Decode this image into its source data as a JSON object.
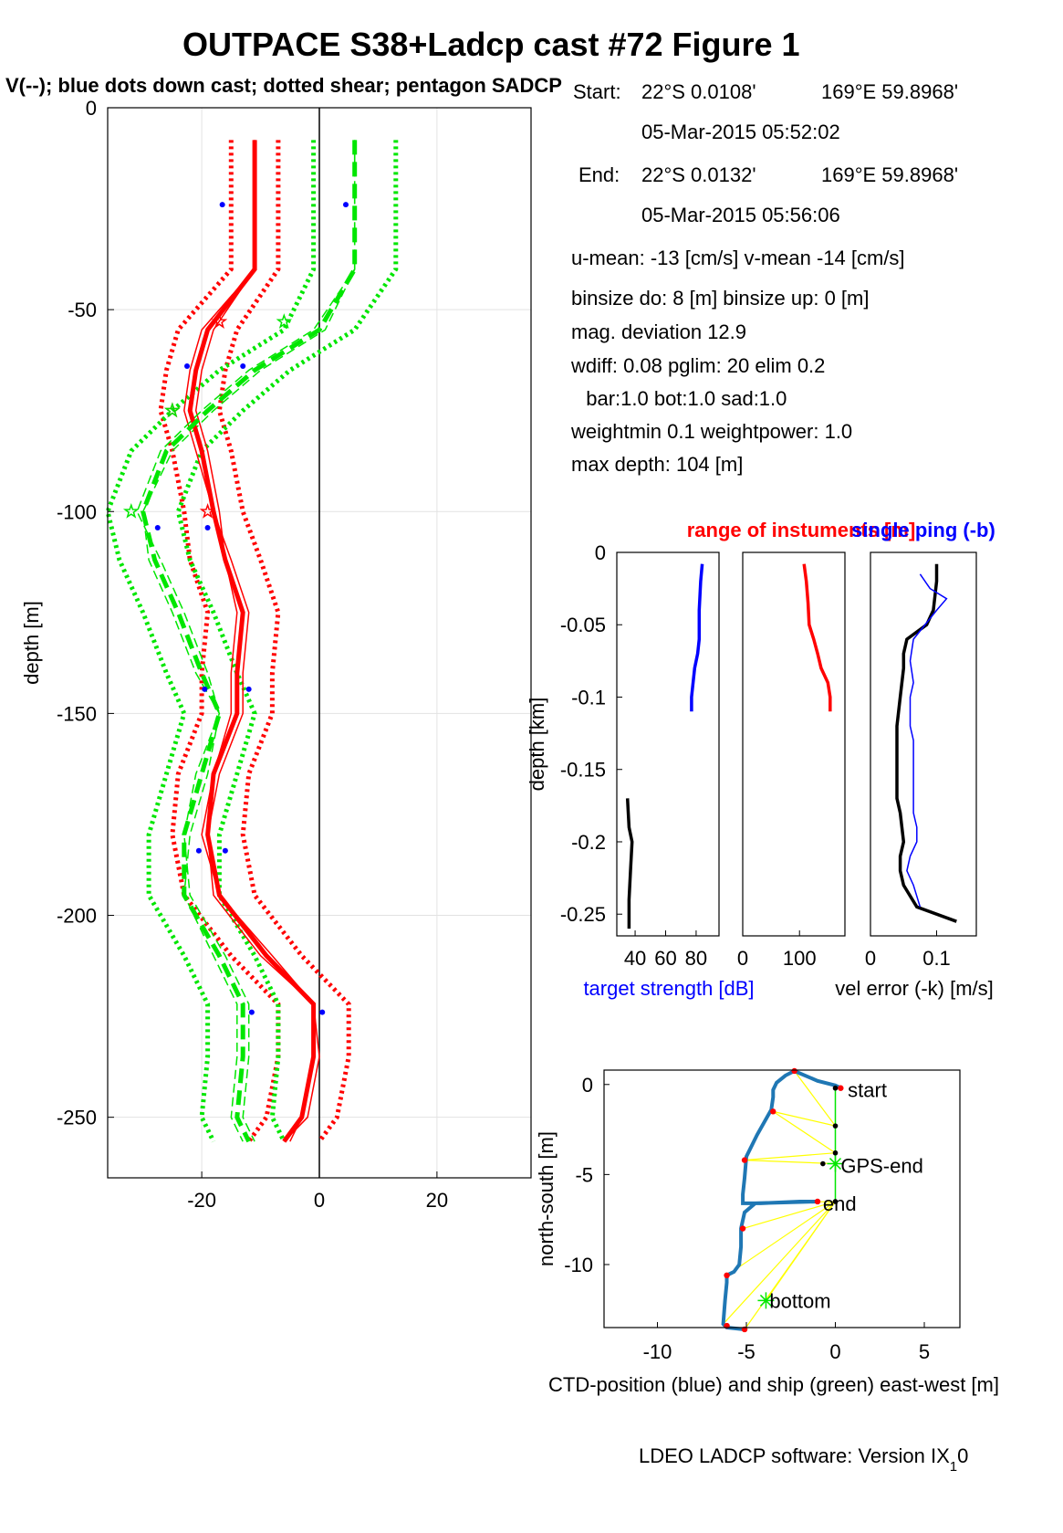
{
  "figure": {
    "title": "OUTPACE S38+Ladcp cast #72  Figure 1",
    "subtitle": "V(--); blue dots down cast; dotted shear; pentagon SADCP",
    "footer": "LDEO LADCP software: Version IX",
    "footer_sub": "1",
    "footer_tail": "0"
  },
  "info": {
    "start_label": "Start:",
    "start_lat": "22°S  0.0108'",
    "start_lon": "169°E 59.8968'",
    "start_time": "05-Mar-2015 05:52:02",
    "end_label": "End:",
    "end_lat": "22°S  0.0132'",
    "end_lon": "169°E 59.8968'",
    "end_time": "05-Mar-2015 05:56:06",
    "mean_line": "u-mean: -13 [cm/s]    v-mean -14 [cm/s]",
    "binsize_line": "binsize do: 8 [m]  binsize up:  0 [m]",
    "magdev_line": "mag. deviation 12.9",
    "wdiff_line": "wdiff: 0.08  pglim: 20  elim 0.2",
    "bar_line": "  bar:1.0 bot:1.0 sad:1.0",
    "weight_line": "weightmin 0.1  weightpower: 1.0",
    "maxdepth_line": "max depth: 104 [m]"
  },
  "chart_data": [
    {
      "type": "line",
      "id": "velocity_profile",
      "ylabel": "depth [m]",
      "xlim": [
        -36,
        36
      ],
      "ylim": [
        -265,
        0
      ],
      "xticks": [
        -20,
        0,
        20
      ],
      "yticks": [
        0,
        -50,
        -100,
        -150,
        -200,
        -250
      ],
      "grid": true,
      "colors": {
        "u": "#ff0000",
        "v": "#00e600",
        "dots": "#0000ff"
      },
      "depth": [
        -8,
        -40,
        -55,
        -65,
        -75,
        -85,
        -100,
        -112,
        -125,
        -140,
        -150,
        -165,
        -180,
        -195,
        -210,
        -222,
        -235,
        -250,
        -256
      ],
      "u_mean": [
        -11,
        -11,
        -19,
        -21,
        -22,
        -20,
        -18,
        -16,
        -13,
        -14,
        -14,
        -18,
        -19,
        -17,
        -9,
        -1,
        -1,
        -3,
        -6
      ],
      "v_mean": [
        6,
        6,
        0,
        -11,
        -19,
        -26,
        -30,
        -28,
        -24,
        -20,
        -17,
        -20,
        -23,
        -23,
        -17,
        -13,
        -13,
        -14,
        -12
      ],
      "u_down": [
        -11,
        -11,
        -20,
        -22,
        -23,
        -21,
        -18,
        -15,
        -12,
        -13,
        -13,
        -17,
        -19,
        -18,
        -10,
        -1,
        -1,
        -3,
        -5
      ],
      "u_up": [
        -11,
        -11,
        -18,
        -20,
        -21,
        -19,
        -17,
        -16,
        -14,
        -15,
        -15,
        -18,
        -20,
        -17,
        -8,
        -1,
        0,
        -2,
        -6
      ],
      "v_down": [
        6,
        6,
        1,
        -10,
        -18,
        -25,
        -30,
        -29,
        -25,
        -21,
        -17,
        -21,
        -23,
        -22,
        -16,
        -12,
        -12,
        -13,
        -11
      ],
      "v_up": [
        6,
        6,
        -1,
        -12,
        -20,
        -27,
        -31,
        -27,
        -23,
        -19,
        -17,
        -19,
        -22,
        -23,
        -18,
        -14,
        -14,
        -15,
        -13
      ],
      "u_err_half": [
        4,
        4,
        5,
        5,
        5,
        5,
        5,
        6,
        6,
        6,
        6,
        6,
        6,
        6,
        6,
        6,
        6,
        6,
        6
      ],
      "v_err_half": [
        7,
        7,
        6,
        6,
        6,
        6,
        6,
        6,
        6,
        6,
        6,
        6,
        6,
        6,
        6,
        6,
        6,
        6,
        6
      ],
      "down_dots": [
        {
          "u": -16.5,
          "v": 4.5,
          "depth": -24
        },
        {
          "u": -22.5,
          "v": -13,
          "depth": -64
        },
        {
          "u": -19,
          "v": -27.5,
          "depth": -104
        },
        {
          "u": -12,
          "v": -19.5,
          "depth": -144
        },
        {
          "u": -16,
          "v": -20.5,
          "depth": -184
        },
        {
          "u": 0.5,
          "v": -11.5,
          "depth": -224
        }
      ],
      "sadcp_markers": [
        {
          "u": -17,
          "v": -6,
          "depth": -53
        },
        {
          "u": -25,
          "v": -25,
          "depth": -75
        },
        {
          "u": -19,
          "v": -32,
          "depth": -100
        }
      ]
    },
    {
      "type": "line",
      "id": "target_strength",
      "xlabel": "target strength [dB]",
      "ylabel": "depth [km]",
      "title_left": "range of instuments [m]",
      "title_right": "single ping (-b)",
      "xlim": [
        28,
        95
      ],
      "ylim": [
        -0.265,
        0
      ],
      "xticks": [
        40,
        60,
        80
      ],
      "yticks": [
        0,
        -0.05,
        -0.1,
        -0.15,
        -0.2,
        -0.25
      ],
      "series": [
        {
          "color": "#0000ff",
          "x": [
            84,
            83,
            82,
            82,
            81,
            79,
            78,
            77,
            77
          ],
          "y": [
            -0.008,
            -0.02,
            -0.04,
            -0.06,
            -0.07,
            -0.08,
            -0.09,
            -0.1,
            -0.11
          ]
        },
        {
          "color": "#000000",
          "x": [
            35,
            36,
            38,
            37,
            36,
            36
          ],
          "y": [
            -0.17,
            -0.19,
            -0.2,
            -0.22,
            -0.24,
            -0.26
          ]
        }
      ]
    },
    {
      "type": "line",
      "id": "range_of_instruments",
      "xlim": [
        0,
        180
      ],
      "ylim": [
        -0.265,
        0
      ],
      "xticks": [
        0,
        100
      ],
      "series": [
        {
          "color": "#ff0000",
          "x": [
            108,
            112,
            115,
            117,
            125,
            132,
            138,
            150,
            154,
            154
          ],
          "y": [
            -0.008,
            -0.02,
            -0.035,
            -0.05,
            -0.06,
            -0.07,
            -0.08,
            -0.09,
            -0.1,
            -0.11
          ]
        }
      ]
    },
    {
      "type": "line",
      "id": "velocity_error",
      "xlabel": "vel error (-k) [m/s]",
      "xlim": [
        0,
        0.16
      ],
      "ylim": [
        -0.265,
        0
      ],
      "xticks": [
        0,
        0.1
      ],
      "series": [
        {
          "name": "black",
          "color": "#000000",
          "x": [
            0.1,
            0.1,
            0.095,
            0.085,
            0.055,
            0.05,
            0.05,
            0.045,
            0.04,
            0.04,
            0.04,
            0.04,
            0.045,
            0.05,
            0.045,
            0.045,
            0.05,
            0.07,
            0.13
          ],
          "y": [
            -0.008,
            -0.02,
            -0.04,
            -0.05,
            -0.06,
            -0.07,
            -0.08,
            -0.1,
            -0.12,
            -0.14,
            -0.15,
            -0.17,
            -0.18,
            -0.2,
            -0.21,
            -0.22,
            -0.23,
            -0.245,
            -0.255
          ]
        },
        {
          "name": "blue",
          "color": "#0000ff",
          "x": [
            0.075,
            0.09,
            0.115,
            0.1,
            0.065,
            0.06,
            0.065,
            0.06,
            0.06,
            0.065,
            0.065,
            0.065,
            0.065,
            0.07,
            0.07,
            0.06,
            0.055,
            0.065,
            0.075
          ],
          "y": [
            -0.015,
            -0.025,
            -0.032,
            -0.04,
            -0.06,
            -0.075,
            -0.09,
            -0.1,
            -0.12,
            -0.13,
            -0.15,
            -0.17,
            -0.18,
            -0.19,
            -0.2,
            -0.21,
            -0.22,
            -0.23,
            -0.245
          ]
        }
      ]
    },
    {
      "type": "line",
      "id": "ctd_position",
      "xlabel": "CTD-position (blue) and ship (green) east-west [m]",
      "ylabel": "north-south [m]",
      "xlim": [
        -13,
        7
      ],
      "ylim": [
        -13.5,
        0.8
      ],
      "xticks": [
        -10,
        -5,
        0,
        5
      ],
      "yticks": [
        0,
        -5,
        -10
      ],
      "labels": [
        {
          "text": "start",
          "x": 0.7,
          "y": -0.3
        },
        {
          "text": "GPS-end",
          "x": 0.3,
          "y": -4.5
        },
        {
          "text": "end",
          "x": -0.7,
          "y": -6.6
        },
        {
          "text": "bottom",
          "x": -3.7,
          "y": -12
        }
      ],
      "ctd_track": {
        "color": "#1f77b4",
        "x": [
          0.3,
          0,
          -1,
          -2.3,
          -2.8,
          -3.3,
          -3.5,
          -3.5,
          -3.6,
          -4.4,
          -5,
          -5.1,
          -5.2,
          -5.2,
          -4.9,
          -4.2,
          -2,
          -1,
          -1,
          -4.5,
          -5.1,
          -5.3,
          -5.3,
          -5.4,
          -5.7,
          -6.1,
          -6.1,
          -6.2,
          -6.3,
          -6.1,
          -5.1
        ],
        "y": [
          -0.2,
          -0.05,
          0.2,
          0.75,
          0.5,
          0.1,
          -0.3,
          -0.7,
          -1.4,
          -2.8,
          -4,
          -5.2,
          -6.1,
          -6.6,
          -6.6,
          -6.6,
          -6.5,
          -6.5,
          -6.5,
          -6.6,
          -7.1,
          -8,
          -9,
          -10,
          -10.4,
          -10.6,
          -11,
          -12,
          -13.3,
          -13.5,
          -13.6
        ]
      },
      "ship_track": {
        "color": "#00e600",
        "x": [
          0,
          0,
          0,
          0,
          0,
          0
        ],
        "y": [
          -0.2,
          -2.3,
          -3.8,
          -4.4,
          -5.9,
          -6.5
        ]
      },
      "links": {
        "color": "#ffff00",
        "pairs": [
          [
            0.3,
            -0.2,
            -2.3,
            0.75
          ],
          [
            0,
            -2.3,
            -2.3,
            0.75
          ],
          [
            0,
            -2.3,
            -3.5,
            -1.5
          ],
          [
            0,
            -3.8,
            -3.5,
            -1.5
          ],
          [
            0,
            -3.8,
            -5.1,
            -4.2
          ],
          [
            0,
            -4.4,
            -5.1,
            -4.2
          ],
          [
            0,
            -6.5,
            -5.2,
            -8
          ],
          [
            0,
            -6.5,
            -6.1,
            -10.6
          ],
          [
            0,
            -6.5,
            -3.9,
            -12
          ],
          [
            0,
            -6.5,
            -5.2,
            -6.6
          ],
          [
            0,
            -6.5,
            -6.3,
            -13.3
          ],
          [
            0,
            -6.5,
            -5.1,
            -13.6
          ]
        ]
      },
      "red_dots": [
        [
          0.3,
          -0.2
        ],
        [
          -2.3,
          0.75
        ],
        [
          -3.5,
          -1.5
        ],
        [
          -5.1,
          -4.2
        ],
        [
          -1,
          -6.5
        ],
        [
          -5.2,
          -8
        ],
        [
          -6.1,
          -10.6
        ],
        [
          -6.1,
          -13.4
        ],
        [
          -5.1,
          -13.6
        ]
      ],
      "black_dots": [
        [
          0,
          -0.2
        ],
        [
          0,
          -2.3
        ],
        [
          0,
          -3.8
        ],
        [
          -0.7,
          -4.4
        ],
        [
          0,
          -6.5
        ]
      ]
    }
  ]
}
